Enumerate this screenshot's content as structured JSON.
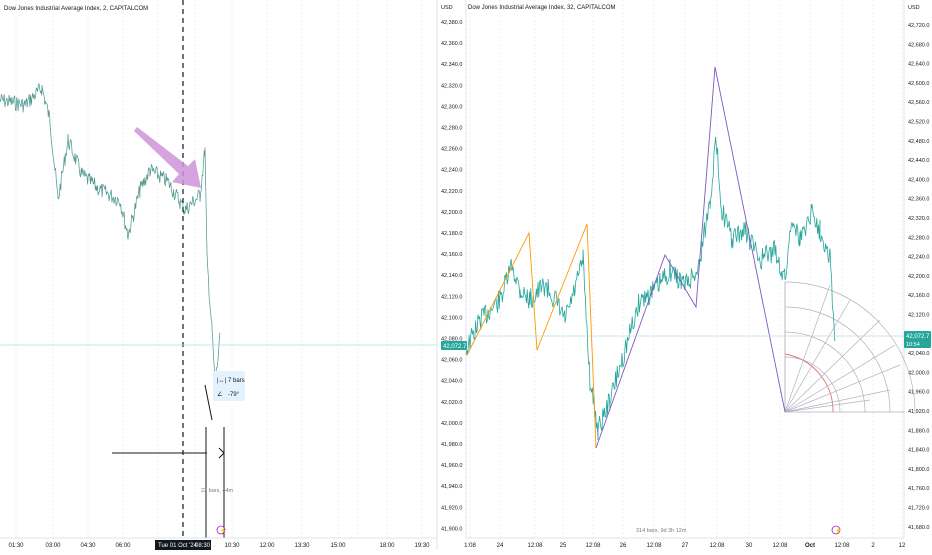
{
  "left_panel": {
    "title": "Dow Jones Industrial Average Index, 2, CAPITALCOM",
    "price_tag": "42,072.7",
    "x_ticks": [
      "01:30",
      "03:00",
      "04:30",
      "06:00",
      "07:30",
      "09:00",
      "10:30",
      "12:00",
      "13:30",
      "15:00",
      "16:30",
      "18:00",
      "19:30"
    ],
    "crosshair_date": "Tue 01 Oct '24",
    "crosshair_time": "08:30",
    "measure_line1": "7 bars",
    "measure_line2": "-79°",
    "range_label": "22 bars, 44m"
  },
  "right_panel": {
    "title": "Dow Jones Industrial Average Index, 32, CAPITALCOM",
    "currency_left": "USD",
    "currency_right": "USD",
    "left_axis_ticks": [
      "42,380.0",
      "42,360.0",
      "42,340.0",
      "42,320.0",
      "42,300.0",
      "42,280.0",
      "42,260.0",
      "42,240.0",
      "42,220.0",
      "42,200.0",
      "42,180.0",
      "42,160.0",
      "42,140.0",
      "42,120.0",
      "42,100.0",
      "42,080.0",
      "42,060.0",
      "42,040.0",
      "42,020.0",
      "42,000.0",
      "41,980.0",
      "41,960.0",
      "41,940.0",
      "41,920.0",
      "41,900.0"
    ],
    "right_axis_ticks": [
      "42,720.0",
      "42,680.0",
      "42,640.0",
      "42,600.0",
      "42,560.0",
      "42,520.0",
      "42,480.0",
      "42,440.0",
      "42,400.0",
      "42,360.0",
      "42,320.0",
      "42,280.0",
      "42,240.0",
      "42,200.0",
      "42,160.0",
      "42,120.0",
      "42,080.0",
      "42,040.0",
      "42,000.0",
      "41,960.0",
      "41,920.0",
      "41,880.0",
      "41,840.0",
      "41,800.0",
      "41,760.0",
      "41,720.0",
      "41,680.0"
    ],
    "left_price_tag": "42,072.7",
    "right_price_tag_value": "42,072.7",
    "right_price_tag_sub": "10:54",
    "x_ticks": [
      "1:08",
      "24",
      "12:08",
      "25",
      "12:08",
      "26",
      "12:08",
      "27",
      "12:08",
      "30",
      "12:08",
      "Oct",
      "12:08",
      "2",
      "12"
    ],
    "range_label": "314 bars, 9d 3h 12m"
  },
  "chart_data": [
    {
      "type": "line",
      "title": "Dow Jones Industrial Average Index, 2, CAPITALCOM",
      "xlabel": "",
      "ylabel": "",
      "x": [
        "01:30",
        "03:00",
        "04:30",
        "06:00",
        "07:30",
        "08:30",
        "09:00",
        "10:30"
      ],
      "series": [
        {
          "values": [
            42220,
            42240,
            42150,
            42190,
            42175,
            42205,
            42120,
            42040
          ]
        }
      ],
      "grid": true,
      "annotations": [
        "7 bars",
        "-79°",
        "22 bars, 44m"
      ]
    },
    {
      "type": "line",
      "title": "Dow Jones Industrial Average Index, 32, CAPITALCOM",
      "xlabel": "",
      "ylabel": "USD",
      "ylim": [
        41900,
        42380
      ],
      "x": [
        "23 12:08",
        "24",
        "24 12:08",
        "25",
        "25 12:08",
        "26",
        "26 12:08",
        "27",
        "27 12:08",
        "30",
        "30 12:08",
        "Oct",
        "Oct 12:08"
      ],
      "series": [
        {
          "values": [
            42070,
            42140,
            42090,
            42150,
            41980,
            42050,
            42110,
            42150,
            42340,
            42180,
            42200,
            42140,
            42070
          ]
        }
      ],
      "grid": true,
      "annotations": [
        "314 bars, 9d 3h 12m"
      ]
    }
  ]
}
